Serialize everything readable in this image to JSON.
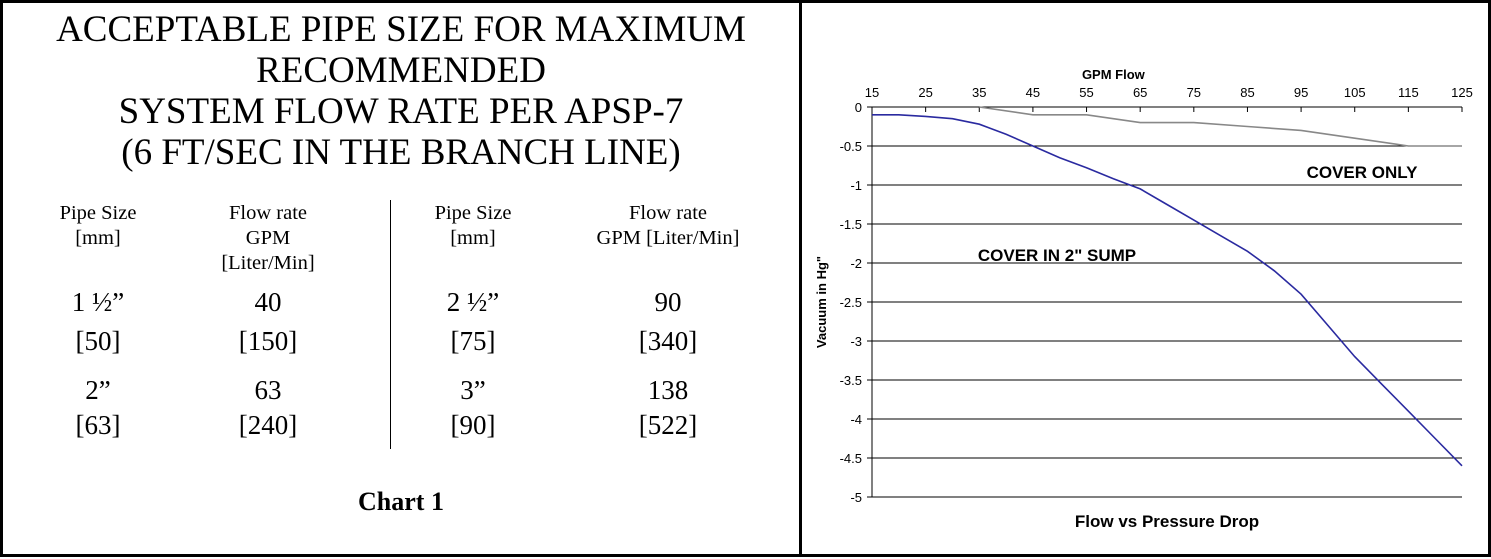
{
  "table": {
    "title_lines": [
      "ACCEPTABLE PIPE SIZE FOR MAXIMUM",
      "RECOMMENDED",
      "SYSTEM FLOW RATE PER APSP-7",
      "(6 FT/SEC IN THE BRANCH LINE)"
    ],
    "headers": [
      {
        "line1": "Pipe Size",
        "line2": "[mm]",
        "line3": ""
      },
      {
        "line1": "Flow rate",
        "line2": "GPM",
        "line3": "[Liter/Min]"
      },
      {
        "line1": "Pipe Size",
        "line2": "[mm]",
        "line3": ""
      },
      {
        "line1": "Flow rate",
        "line2": "GPM [Liter/Min]",
        "line3": ""
      }
    ],
    "rows": [
      {
        "a_size": "1 ½”",
        "a_mm": "[50]",
        "a_gpm": "40",
        "a_lpm": "[150]",
        "b_size": "2 ½”",
        "b_mm": "[75]",
        "b_gpm": "90",
        "b_lpm": "[340]"
      },
      {
        "a_size": "2”",
        "a_mm": "[63]",
        "a_gpm": "63",
        "a_lpm": "[240]",
        "b_size": "3”",
        "b_mm": "[90]",
        "b_gpm": "138",
        "b_lpm": "[522]"
      }
    ],
    "caption": "Chart 1"
  },
  "chart_data": {
    "type": "line",
    "title": "Flow vs Pressure Drop",
    "xlabel": "GPM Flow",
    "ylabel": "Vacuum in Hg\"",
    "xlim": [
      15,
      125
    ],
    "ylim": [
      -5,
      0
    ],
    "x_ticks": [
      "15",
      "25",
      "35",
      "45",
      "55",
      "65",
      "75",
      "85",
      "95",
      "105",
      "115",
      "125"
    ],
    "y_ticks": [
      "0",
      "-0.5",
      "-1",
      "-1.5",
      "-2",
      "-2.5",
      "-3",
      "-3.5",
      "-4",
      "-4.5",
      "-5"
    ],
    "grid": true,
    "series": [
      {
        "name": "COVER ONLY",
        "color": "#888888",
        "points": [
          [
            35,
            0
          ],
          [
            45,
            -0.1
          ],
          [
            55,
            -0.1
          ],
          [
            65,
            -0.2
          ],
          [
            75,
            -0.2
          ],
          [
            85,
            -0.25
          ],
          [
            95,
            -0.3
          ],
          [
            105,
            -0.4
          ],
          [
            115,
            -0.5
          ],
          [
            125,
            -0.5
          ]
        ]
      },
      {
        "name": "COVER IN 2\" SUMP",
        "color": "#2a2aa0",
        "points": [
          [
            15,
            -0.1
          ],
          [
            20,
            -0.1
          ],
          [
            25,
            -0.12
          ],
          [
            30,
            -0.15
          ],
          [
            35,
            -0.22
          ],
          [
            40,
            -0.35
          ],
          [
            45,
            -0.5
          ],
          [
            50,
            -0.65
          ],
          [
            55,
            -0.78
          ],
          [
            60,
            -0.92
          ],
          [
            65,
            -1.05
          ],
          [
            70,
            -1.25
          ],
          [
            75,
            -1.45
          ],
          [
            80,
            -1.65
          ],
          [
            85,
            -1.85
          ],
          [
            90,
            -2.1
          ],
          [
            95,
            -2.4
          ],
          [
            100,
            -2.8
          ],
          [
            105,
            -3.2
          ],
          [
            110,
            -3.55
          ],
          [
            115,
            -3.9
          ],
          [
            120,
            -4.25
          ],
          [
            125,
            -4.6
          ]
        ]
      }
    ],
    "annotations": [
      "COVER ONLY",
      "COVER IN 2\" SUMP"
    ]
  }
}
